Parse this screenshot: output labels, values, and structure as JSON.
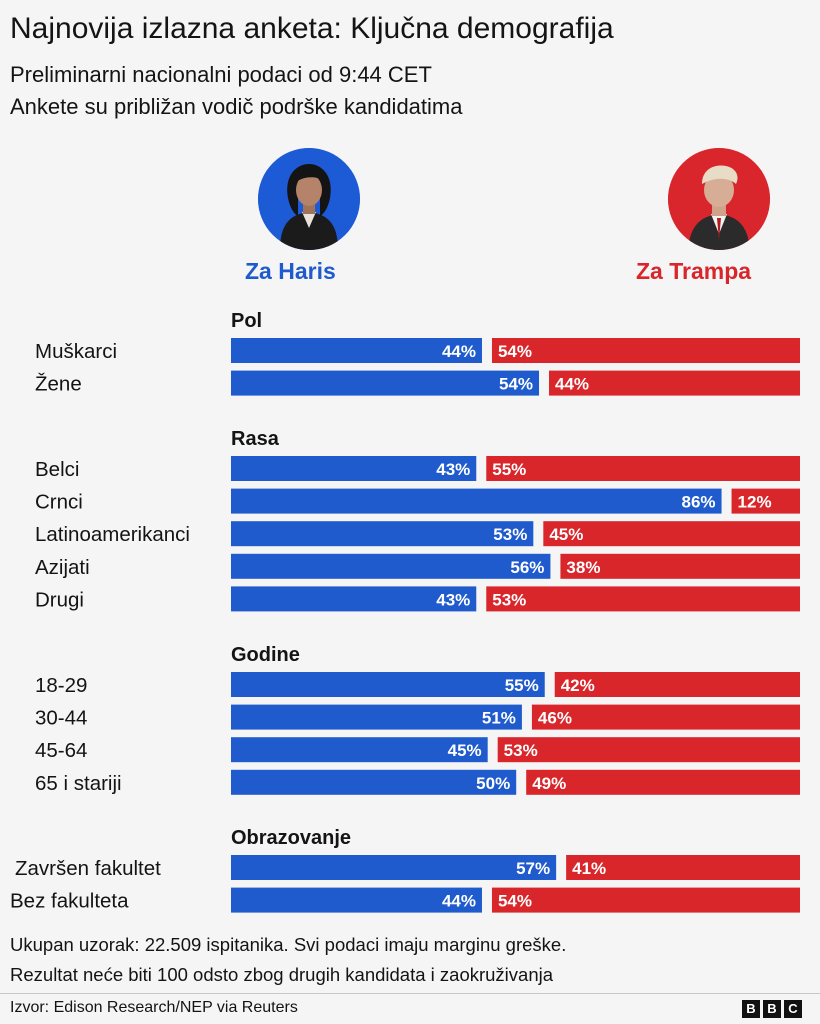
{
  "title": "Najnovija izlazna anketa: Ključna demografija",
  "subtitle1": "Preliminarni nacionalni podaci od 9:44 CET",
  "subtitle2": "Ankete su približan vodič podrške kandidatima",
  "candidates": {
    "harris": {
      "label": "Za Haris",
      "color": "#1f5bcc",
      "icon": "harris-portrait-icon"
    },
    "trump": {
      "label": "Za Trampa",
      "color": "#d8262b",
      "icon": "trump-portrait-icon"
    }
  },
  "chart_data": {
    "type": "bar",
    "value_unit": "%",
    "xlim": [
      0,
      100
    ],
    "series": [
      {
        "name": "Za Haris",
        "color": "#1f5bcc"
      },
      {
        "name": "Za Trampa",
        "color": "#d8262b"
      }
    ],
    "groups": [
      {
        "name": "Pol",
        "rows": [
          {
            "label": "Muškarci",
            "harris": 44,
            "trump": 54
          },
          {
            "label": "Žene",
            "harris": 54,
            "trump": 44
          }
        ]
      },
      {
        "name": "Rasa",
        "rows": [
          {
            "label": "Belci",
            "harris": 43,
            "trump": 55
          },
          {
            "label": "Crnci",
            "harris": 86,
            "trump": 12
          },
          {
            "label": "Latinoamerikanci",
            "harris": 53,
            "trump": 45
          },
          {
            "label": "Azijati",
            "harris": 56,
            "trump": 38
          },
          {
            "label": "Drugi",
            "harris": 43,
            "trump": 53
          }
        ]
      },
      {
        "name": "Godine",
        "rows": [
          {
            "label": "18-29",
            "harris": 55,
            "trump": 42
          },
          {
            "label": "30-44",
            "harris": 51,
            "trump": 46
          },
          {
            "label": "45-64",
            "harris": 45,
            "trump": 53
          },
          {
            "label": "65 i stariji",
            "harris": 50,
            "trump": 49
          }
        ]
      },
      {
        "name": "Obrazovanje",
        "rows": [
          {
            "label": "Završen fakultet",
            "harris": 57,
            "trump": 41
          },
          {
            "label": "Bez fakulteta",
            "harris": 44,
            "trump": 54
          }
        ]
      }
    ]
  },
  "footnote1": "Ukupan uzorak: 22.509 ispitanika. Svi podaci imaju marginu greške.",
  "footnote2": "Rezultat neće biti 100 odsto zbog drugih kandidata i zaokruživanja",
  "source": "Izvor: Edison Research/NEP via Reuters",
  "logo": {
    "letters": [
      "B",
      "B",
      "C"
    ]
  }
}
